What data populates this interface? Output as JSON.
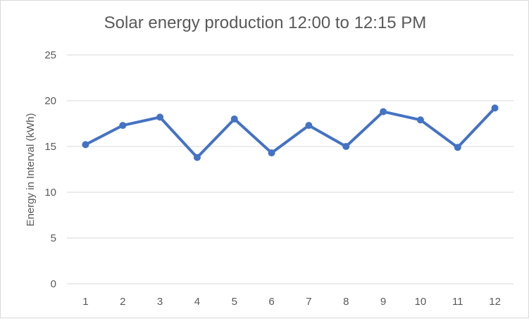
{
  "chart_data": {
    "type": "line",
    "title": "Solar energy production 12:00 to 12:15 PM",
    "xlabel": "",
    "ylabel": "Energy in Interval (kWh)",
    "categories": [
      "1",
      "2",
      "3",
      "4",
      "5",
      "6",
      "7",
      "8",
      "9",
      "10",
      "11",
      "12"
    ],
    "series": [
      {
        "values": [
          15.2,
          17.3,
          18.2,
          13.8,
          18.0,
          14.3,
          17.3,
          15.0,
          18.8,
          17.9,
          14.9,
          19.2
        ]
      }
    ],
    "ylim": [
      0,
      25
    ],
    "yticks": [
      0,
      5,
      10,
      15,
      20,
      25
    ],
    "grid": "horizontal",
    "legend": "none",
    "color": "#4472c4"
  }
}
